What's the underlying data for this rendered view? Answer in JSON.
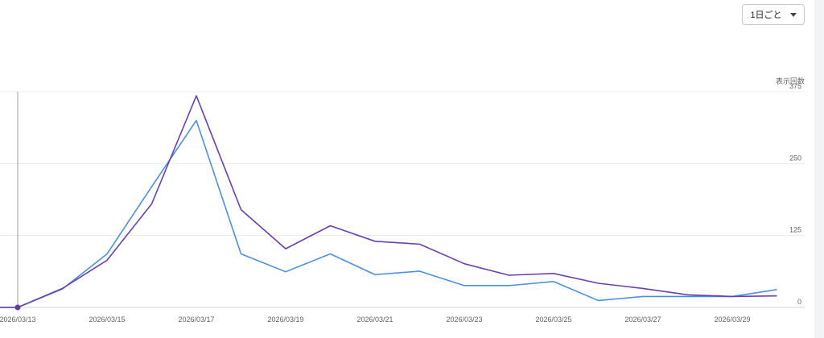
{
  "controls": {
    "interval_label": "1日ごと",
    "interval_icon": "chevron-down-icon"
  },
  "colors": {
    "series_purple": "#6a3fb6",
    "series_blue": "#4a90e2",
    "grid": "#ececec",
    "crosshair": "#9aa0a6",
    "marker": "#5b3fa0"
  },
  "chart_data": {
    "type": "line",
    "ylabel": "表示回数",
    "ylim": [
      0,
      375
    ],
    "yticks": [
      0,
      125,
      250,
      375
    ],
    "x": [
      "2026/03/13",
      "2026/03/14",
      "2026/03/15",
      "2026/03/16",
      "2026/03/17",
      "2026/03/18",
      "2026/03/19",
      "2026/03/20",
      "2026/03/21",
      "2026/03/22",
      "2026/03/23",
      "2026/03/24",
      "2026/03/25",
      "2026/03/26",
      "2026/03/27",
      "2026/03/28",
      "2026/03/29",
      "2026/03/30"
    ],
    "x_tick_labels": [
      "2026/03/13",
      "2026/03/15",
      "2026/03/17",
      "2026/03/19",
      "2026/03/21",
      "2026/03/23",
      "2026/03/25",
      "2026/03/27",
      "2026/03/29"
    ],
    "series": [
      {
        "values": [
          0,
          33,
          82,
          180,
          368,
          170,
          102,
          142,
          115,
          110,
          76,
          56,
          59,
          42,
          33,
          22,
          19,
          20
        ]
      },
      {
        "values": [
          0,
          32,
          93,
          210,
          325,
          93,
          62,
          93,
          57,
          63,
          38,
          38,
          45,
          12,
          19,
          19,
          19,
          31
        ]
      }
    ],
    "highlight_index": 0,
    "grid": true
  }
}
